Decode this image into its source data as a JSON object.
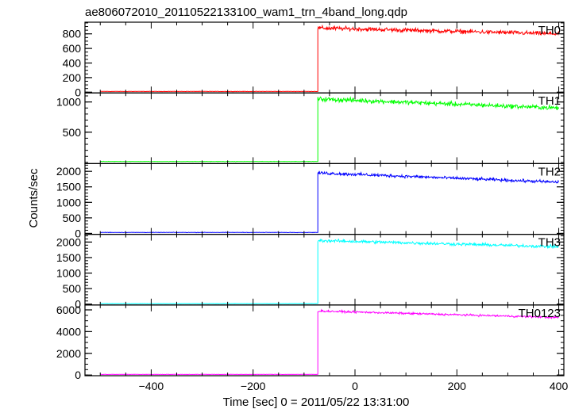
{
  "chart_data": {
    "type": "line",
    "title": "ae806072010_20110522133100_wam1_trn_4band_long.qdp",
    "xlabel": "Time [sec] 0 = 2011/05/22 13:31:00",
    "ylabel": "Counts/sec",
    "xlim": [
      -530,
      410
    ],
    "x_ticks": [
      -400,
      -200,
      0,
      200,
      400
    ],
    "x_tick_labels": [
      "−400",
      "−200",
      "0",
      "200",
      "400"
    ],
    "x_minor_step": 50,
    "onset_time": -73,
    "data_start": -500,
    "data_end": 400,
    "panels": [
      {
        "name": "TH0",
        "color": "#ff0000",
        "ylim": [
          -10,
          960
        ],
        "yticks": [
          0,
          200,
          400,
          600,
          800
        ],
        "ytick_labels": [
          "0",
          "200",
          "400",
          "600",
          "800"
        ],
        "y_minor_step": 50,
        "pre_level": 10,
        "post_start": 880,
        "post_end": 800,
        "noise": 35
      },
      {
        "name": "TH1",
        "color": "#00ff00",
        "ylim": [
          -20,
          1150
        ],
        "yticks": [
          500,
          1000
        ],
        "ytick_labels": [
          "500",
          "1000"
        ],
        "y_minor_step": 100,
        "pre_level": 15,
        "post_start": 1050,
        "post_end": 900,
        "noise": 45
      },
      {
        "name": "TH2",
        "color": "#0000ff",
        "ylim": [
          -30,
          2250
        ],
        "yticks": [
          0,
          500,
          1000,
          1500,
          2000
        ],
        "ytick_labels": [
          "0",
          "500",
          "1000",
          "1500",
          "2000"
        ],
        "y_minor_step": 100,
        "pre_level": 30,
        "post_start": 1950,
        "post_end": 1650,
        "noise": 60
      },
      {
        "name": "TH3",
        "color": "#00ffff",
        "ylim": [
          -30,
          2250
        ],
        "yticks": [
          0,
          500,
          1000,
          1500,
          2000
        ],
        "ytick_labels": [
          "0",
          "500",
          "1000",
          "1500",
          "2000"
        ],
        "y_minor_step": 100,
        "pre_level": 20,
        "post_start": 2050,
        "post_end": 1850,
        "noise": 60
      },
      {
        "name": "TH0123",
        "color": "#ff00ff",
        "ylim": [
          -60,
          6450
        ],
        "yticks": [
          0,
          2000,
          4000,
          6000
        ],
        "ytick_labels": [
          "0",
          "2000",
          "4000",
          "6000"
        ],
        "y_minor_step": 500,
        "pre_level": 60,
        "post_start": 5900,
        "post_end": 5300,
        "noise": 110
      }
    ]
  }
}
